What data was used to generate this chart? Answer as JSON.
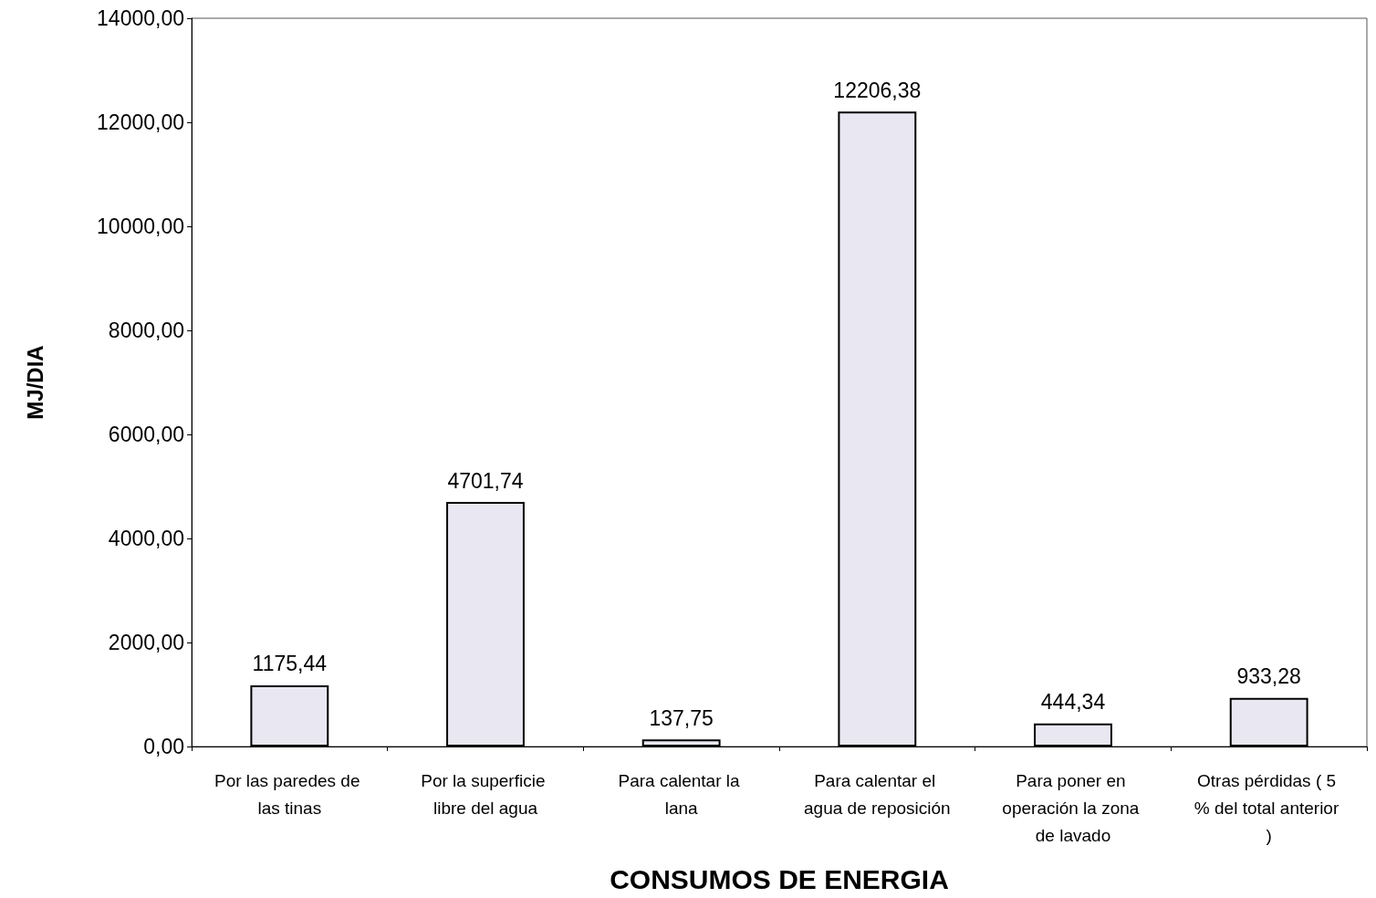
{
  "chart_data": {
    "type": "bar",
    "xlabel": "CONSUMOS DE ENERGIA",
    "ylabel": "MJ/DIA",
    "categories": [
      "Por las paredes de las tinas",
      "Por la superficie libre del agua",
      "Para calentar la lana",
      "Para calentar el agua de reposición",
      "Para poner en operación la zona de lavado",
      "Otras pérdidas ( 5 % del total anterior )"
    ],
    "values": [
      1175.44,
      4701.74,
      137.75,
      12206.38,
      444.34,
      933.28
    ],
    "value_labels": [
      "1175,44",
      "4701,74",
      "137,75",
      "12206,38",
      "444,34",
      "933,28"
    ],
    "color": "#e9e7f1",
    "ylim": [
      0,
      14000
    ],
    "yticks": [
      {
        "value": 0,
        "label": "0,00"
      },
      {
        "value": 2000,
        "label": "2000,00"
      },
      {
        "value": 4000,
        "label": "4000,00"
      },
      {
        "value": 6000,
        "label": "6000,00"
      },
      {
        "value": 8000,
        "label": "8000,00"
      },
      {
        "value": 10000,
        "label": "10000,00"
      },
      {
        "value": 12000,
        "label": "12000,00"
      },
      {
        "value": 14000,
        "label": "14000,00"
      }
    ],
    "grid": false
  }
}
